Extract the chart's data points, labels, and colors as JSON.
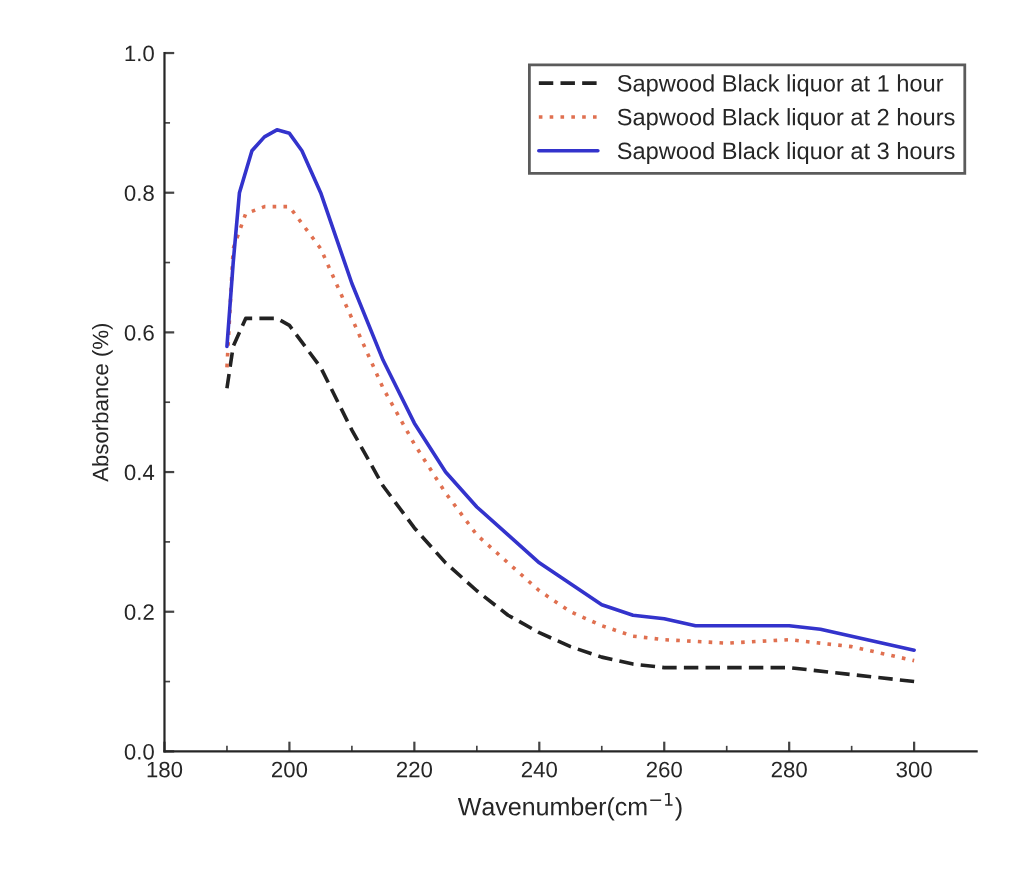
{
  "chart_data": {
    "type": "line",
    "xlabel": "Wavenumber(cm$^{−1}$)",
    "ylabel": "Absorbance (%)",
    "xlim": [
      180,
      310
    ],
    "xticks": [
      180,
      200,
      220,
      240,
      260,
      280,
      300
    ],
    "ylim": [
      0,
      1.0
    ],
    "yticks": [
      {
        "value": 0,
        "label": "0.0"
      },
      {
        "value": 0.2,
        "label": "0.2"
      },
      {
        "value": 0.4,
        "label": "0.4"
      },
      {
        "value": 0.6,
        "label": "0.6"
      },
      {
        "value": 0.8,
        "label": "0.8"
      },
      {
        "value": 1.0,
        "label": "1.0"
      }
    ],
    "grid": false,
    "legend": "top right",
    "marker": "none",
    "series": [
      {
        "name": "Sapwood Black liquor at 1 hour",
        "color": "#222222",
        "line_style": "dashed",
        "x": [
          190,
          191,
          193,
          198,
          200,
          205,
          210,
          215,
          220,
          225,
          230,
          235,
          240,
          245,
          250,
          255,
          260,
          270,
          280,
          290,
          300
        ],
        "values": [
          0.52,
          0.58,
          0.62,
          0.62,
          0.61,
          0.55,
          0.46,
          0.38,
          0.32,
          0.27,
          0.23,
          0.195,
          0.17,
          0.15,
          0.135,
          0.125,
          0.12,
          0.12,
          0.12,
          0.11,
          0.1
        ]
      },
      {
        "name": "Sapwood Black liquor at 2 hours",
        "color": "#e07050",
        "line_style": "dotted",
        "x": [
          190,
          191,
          193,
          196,
          200,
          205,
          210,
          215,
          220,
          225,
          230,
          235,
          240,
          245,
          250,
          255,
          260,
          270,
          280,
          290,
          300
        ],
        "values": [
          0.55,
          0.72,
          0.77,
          0.78,
          0.78,
          0.72,
          0.62,
          0.52,
          0.44,
          0.37,
          0.31,
          0.27,
          0.23,
          0.2,
          0.18,
          0.165,
          0.16,
          0.155,
          0.16,
          0.15,
          0.13
        ]
      },
      {
        "name": "Sapwood Black liquor at 3 hours",
        "color": "#3333cc",
        "line_style": "solid",
        "x": [
          190,
          191,
          192,
          194,
          196,
          198,
          200,
          202,
          205,
          210,
          215,
          220,
          225,
          230,
          235,
          240,
          245,
          250,
          255,
          260,
          265,
          270,
          280,
          285,
          290,
          295,
          300
        ],
        "values": [
          0.58,
          0.7,
          0.8,
          0.86,
          0.88,
          0.89,
          0.885,
          0.86,
          0.8,
          0.67,
          0.56,
          0.47,
          0.4,
          0.35,
          0.31,
          0.27,
          0.24,
          0.21,
          0.195,
          0.19,
          0.18,
          0.18,
          0.18,
          0.175,
          0.165,
          0.155,
          0.145
        ]
      }
    ]
  }
}
